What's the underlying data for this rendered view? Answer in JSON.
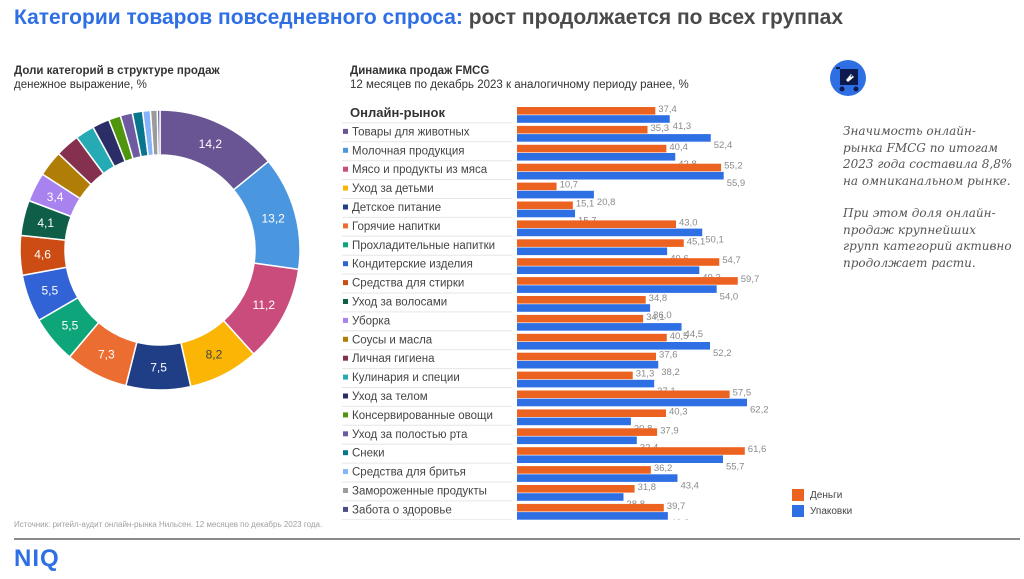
{
  "header": {
    "title_blue": "Категории товаров повседневного спроса:",
    "title_grey": "рост продолжается по всех группах"
  },
  "donut_section": {
    "title": "Доли категорий в структуре продаж",
    "subtitle": "денежное выражение, %"
  },
  "bar_section": {
    "title": "Динамика продаж FMCG",
    "subtitle": "12 месяцев по декабрь 2023 к аналогичному периоду ранее, %"
  },
  "note": {
    "p1": "Значимость онлайн-рынка FMCG по итогам 2023 года составила 8,8% на омниканальном рынке.",
    "p2": "При этом доля онлайн-продаж крупнейших групп категорий активно продолжает расти."
  },
  "icon": "shopping-cart-tag-icon",
  "source": "Источник: ритейл-аудит онлайн-рынка Нильсен. 12 месяцев по декабрь 2023 года.",
  "logo": "NIQ",
  "colors": {
    "money": "#ec6321",
    "packs": "#2f6fe4",
    "title_blue": "#2f6fe4"
  },
  "chart_data": [
    {
      "type": "pie",
      "variant": "donut",
      "title": "Доли категорий в структуре продаж",
      "subtitle": "денежное выражение, %",
      "start": "top, clockwise",
      "slices": [
        {
          "label": "Товары для животных",
          "value": 14.2,
          "shown": "14,2",
          "color": "#6a5594"
        },
        {
          "label": "Молочная продукция",
          "value": 13.2,
          "shown": "13,2",
          "color": "#4a97e0"
        },
        {
          "label": "Мясо и продукты из мяса",
          "value": 11.2,
          "shown": "11,2",
          "color": "#c94c7c"
        },
        {
          "label": "Уход за детьми",
          "value": 8.2,
          "shown": "8,2",
          "color": "#fbb605"
        },
        {
          "label": "Детское питание",
          "value": 7.5,
          "shown": "7,5",
          "color": "#1f3e86"
        },
        {
          "label": "Горячие напитки",
          "value": 7.3,
          "shown": "7,3",
          "color": "#ec6d32"
        },
        {
          "label": "Прохладительные напитки",
          "value": 5.5,
          "shown": "5,5",
          "color": "#0ea57a"
        },
        {
          "label": "Кондитерские изделия",
          "value": 5.5,
          "shown": "5,5",
          "color": "#3162d6"
        },
        {
          "label": "Средства для стирки",
          "value": 4.6,
          "shown": "4,6",
          "color": "#cc4c14"
        },
        {
          "label": "Уход за волосами",
          "value": 4.1,
          "shown": "4,1",
          "color": "#0f5e47"
        },
        {
          "label": "Уборка",
          "value": 3.4,
          "shown": "3,4",
          "color": "#a882ef"
        },
        {
          "label": "Соусы и масла",
          "value": 3.0,
          "shown": "",
          "color": "#b07d06"
        },
        {
          "label": "Личная гигиена",
          "value": 2.8,
          "shown": "",
          "color": "#84304e"
        },
        {
          "label": "Кулинария и специи",
          "value": 2.2,
          "shown": "",
          "color": "#26abb5"
        },
        {
          "label": "Уход за телом",
          "value": 2.0,
          "shown": "",
          "color": "#2b2d66"
        },
        {
          "label": "Консервированные овощи",
          "value": 1.4,
          "shown": "",
          "color": "#4f950e"
        },
        {
          "label": "Уход за полостью рта",
          "value": 1.4,
          "shown": "",
          "color": "#6e5aa0"
        },
        {
          "label": "Снеки",
          "value": 1.2,
          "shown": "",
          "color": "#08778e"
        },
        {
          "label": "Средства для бритья",
          "value": 0.9,
          "shown": "",
          "color": "#86b3fa"
        },
        {
          "label": "Замороженные продукты",
          "value": 0.8,
          "shown": "",
          "color": "#9b9b9b"
        },
        {
          "label": "Забота о здоровье",
          "value": 0.3,
          "shown": "",
          "color": "#4b4b8a"
        }
      ]
    },
    {
      "type": "bar",
      "orientation": "horizontal",
      "title": "Динамика продаж FMCG",
      "subtitle": "12 месяцев по декабрь 2023 к аналогичному периоду ранее, %",
      "xlim": [
        0,
        65
      ],
      "legend": "bottom-right",
      "categories": [
        "Онлайн-рынок",
        "Товары для животных",
        "Молочная продукция",
        "Мясо и продукты из мяса",
        "Уход за детьми",
        "Детское питание",
        "Горячие напитки",
        "Прохладительные напитки",
        "Кондитерские изделия",
        "Средства для стирки",
        "Уход за волосами",
        "Уборка",
        "Соусы и масла",
        "Личная гигиена",
        "Кулинария и специи",
        "Уход за телом",
        "Консервированные овощи",
        "Уход за полостью рта",
        "Снеки",
        "Средства для бритья",
        "Замороженные продукты",
        "Забота о здоровье"
      ],
      "bullet_colors": [
        null,
        "#6a5594",
        "#4a97e0",
        "#c94c7c",
        "#fbb605",
        "#1f3e86",
        "#ec6d32",
        "#0ea57a",
        "#3162d6",
        "#cc4c14",
        "#0f5e47",
        "#a882ef",
        "#b07d06",
        "#84304e",
        "#26abb5",
        "#2b2d66",
        "#4f950e",
        "#6e5aa0",
        "#08778e",
        "#86b3fa",
        "#9b9b9b",
        "#4b4b8a"
      ],
      "series": [
        {
          "name": "Деньги",
          "color": "#ec6321",
          "values": [
            37.4,
            35.3,
            40.4,
            55.2,
            10.7,
            15.1,
            43.0,
            45.1,
            54.7,
            59.7,
            34.8,
            34.1,
            40.5,
            37.6,
            31.3,
            57.5,
            40.3,
            37.9,
            61.6,
            36.2,
            31.8,
            39.7
          ]
        },
        {
          "name": "Упаковки",
          "color": "#2f6fe4",
          "values": [
            41.3,
            52.4,
            42.8,
            55.9,
            20.8,
            15.7,
            50.1,
            40.6,
            49.3,
            54.0,
            36.0,
            44.5,
            52.2,
            38.2,
            37.1,
            62.2,
            30.8,
            32.4,
            55.7,
            43.4,
            28.8,
            40.8
          ]
        }
      ]
    }
  ]
}
